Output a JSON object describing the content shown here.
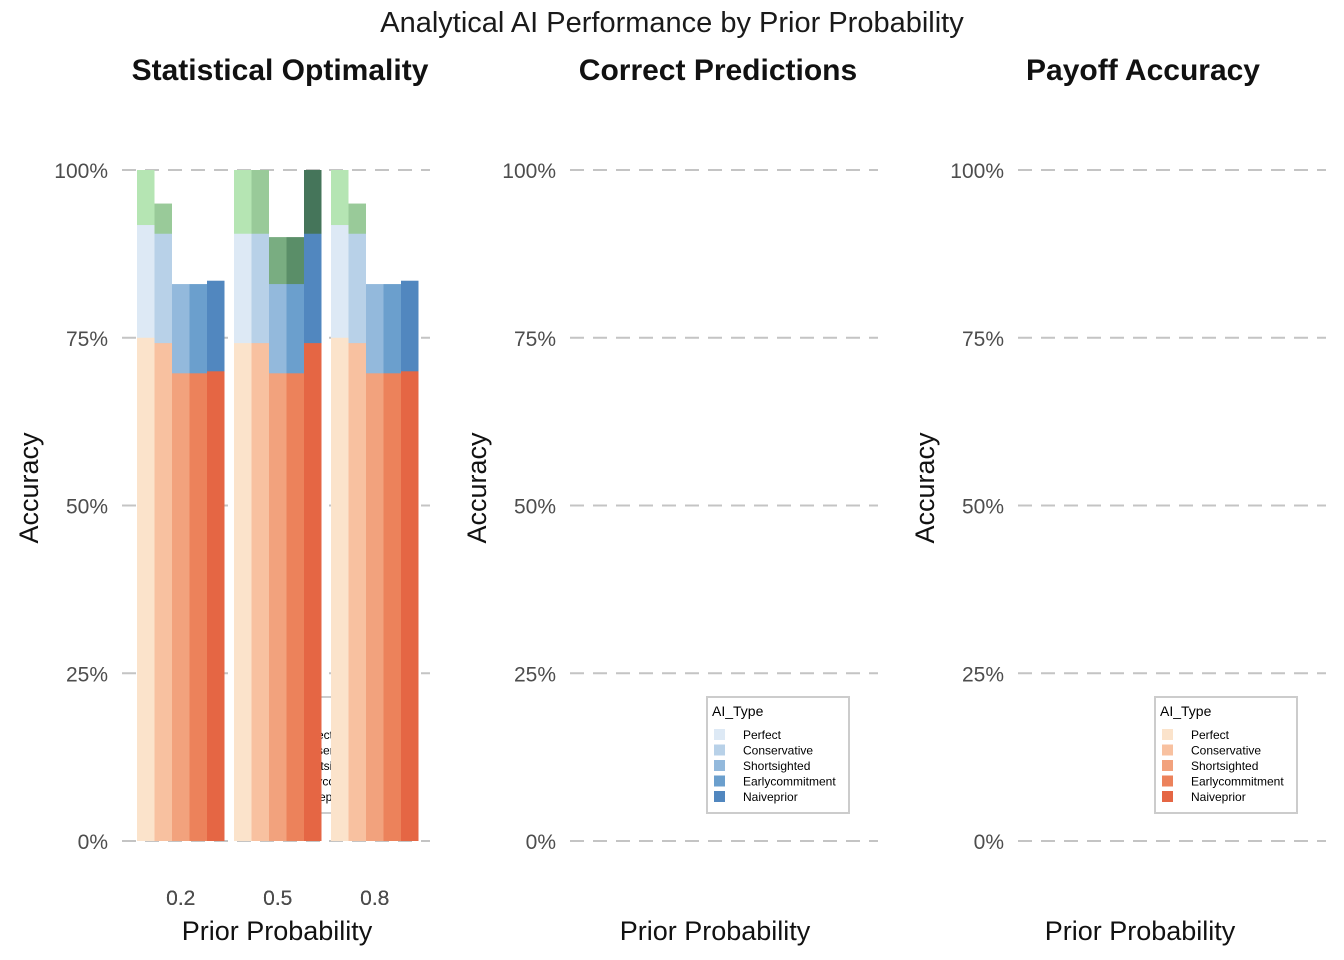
{
  "title": "Analytical AI Performance by Prior Probability",
  "chart_data": [
    {
      "type": "bar",
      "title": "Statistical Optimality",
      "xlabel": "Prior Probability",
      "ylabel": "Accuracy",
      "categories": [
        "0.2",
        "0.5",
        "0.8"
      ],
      "ylim": [
        0,
        1
      ],
      "yticks": [
        "0%",
        "25%",
        "50%",
        "75%",
        "100%"
      ],
      "grid": "horizontal dashed",
      "legend": {
        "title": "AI_Type",
        "position": "bottom-right"
      },
      "series": [
        {
          "name": "Perfect",
          "color": "#b5e5b3",
          "values": [
            1.0,
            1.0,
            1.0
          ]
        },
        {
          "name": "Conservative",
          "color": "#99ca99",
          "values": [
            0.95,
            1.0,
            0.95
          ]
        },
        {
          "name": "Shortsighted",
          "color": "#79ad81",
          "values": [
            0.783,
            0.9,
            0.783
          ]
        },
        {
          "name": "Earlycommitment",
          "color": "#5a8e68",
          "values": [
            0.783,
            0.9,
            0.783
          ]
        },
        {
          "name": "Naiveprior",
          "color": "#45755a",
          "values": [
            0.73,
            1.0,
            0.73
          ]
        }
      ]
    },
    {
      "type": "bar",
      "title": "Correct Predictions",
      "xlabel": "Prior Probability",
      "ylabel": "Accuracy",
      "categories": [
        "0.2",
        "0.5",
        "0.8"
      ],
      "ylim": [
        0,
        1
      ],
      "yticks": [
        "0%",
        "25%",
        "50%",
        "75%",
        "100%"
      ],
      "grid": "horizontal dashed",
      "legend": {
        "title": "AI_Type",
        "position": "bottom-right"
      },
      "series": [
        {
          "name": "Perfect",
          "color": "#dde9f5",
          "values": [
            0.918,
            0.905,
            0.918
          ]
        },
        {
          "name": "Conservative",
          "color": "#b8d1e8",
          "values": [
            0.905,
            0.905,
            0.905
          ]
        },
        {
          "name": "Shortsighted",
          "color": "#93b9dc",
          "values": [
            0.83,
            0.83,
            0.83
          ]
        },
        {
          "name": "Earlycommitment",
          "color": "#6b9fcd",
          "values": [
            0.83,
            0.83,
            0.83
          ]
        },
        {
          "name": "Naiveprior",
          "color": "#5187bf",
          "values": [
            0.835,
            0.905,
            0.835
          ]
        }
      ]
    },
    {
      "type": "bar",
      "title": "Payoff Accuracy",
      "xlabel": "Prior Probability",
      "ylabel": "Accuracy",
      "categories": [
        "0.2",
        "0.5",
        "0.8"
      ],
      "ylim": [
        0,
        1
      ],
      "yticks": [
        "0%",
        "25%",
        "50%",
        "75%",
        "100%"
      ],
      "grid": "horizontal dashed",
      "legend": {
        "title": "AI_Type",
        "position": "bottom-right"
      },
      "series": [
        {
          "name": "Perfect",
          "color": "#fbe3cb",
          "values": [
            0.75,
            0.742,
            0.75
          ]
        },
        {
          "name": "Conservative",
          "color": "#f8c1a0",
          "values": [
            0.742,
            0.742,
            0.742
          ]
        },
        {
          "name": "Shortsighted",
          "color": "#f2a27d",
          "values": [
            0.697,
            0.697,
            0.697
          ]
        },
        {
          "name": "Earlycommitment",
          "color": "#ec825b",
          "values": [
            0.697,
            0.697,
            0.697
          ]
        },
        {
          "name": "Naiveprior",
          "color": "#e56644",
          "values": [
            0.7,
            0.742,
            0.7
          ]
        }
      ]
    }
  ]
}
